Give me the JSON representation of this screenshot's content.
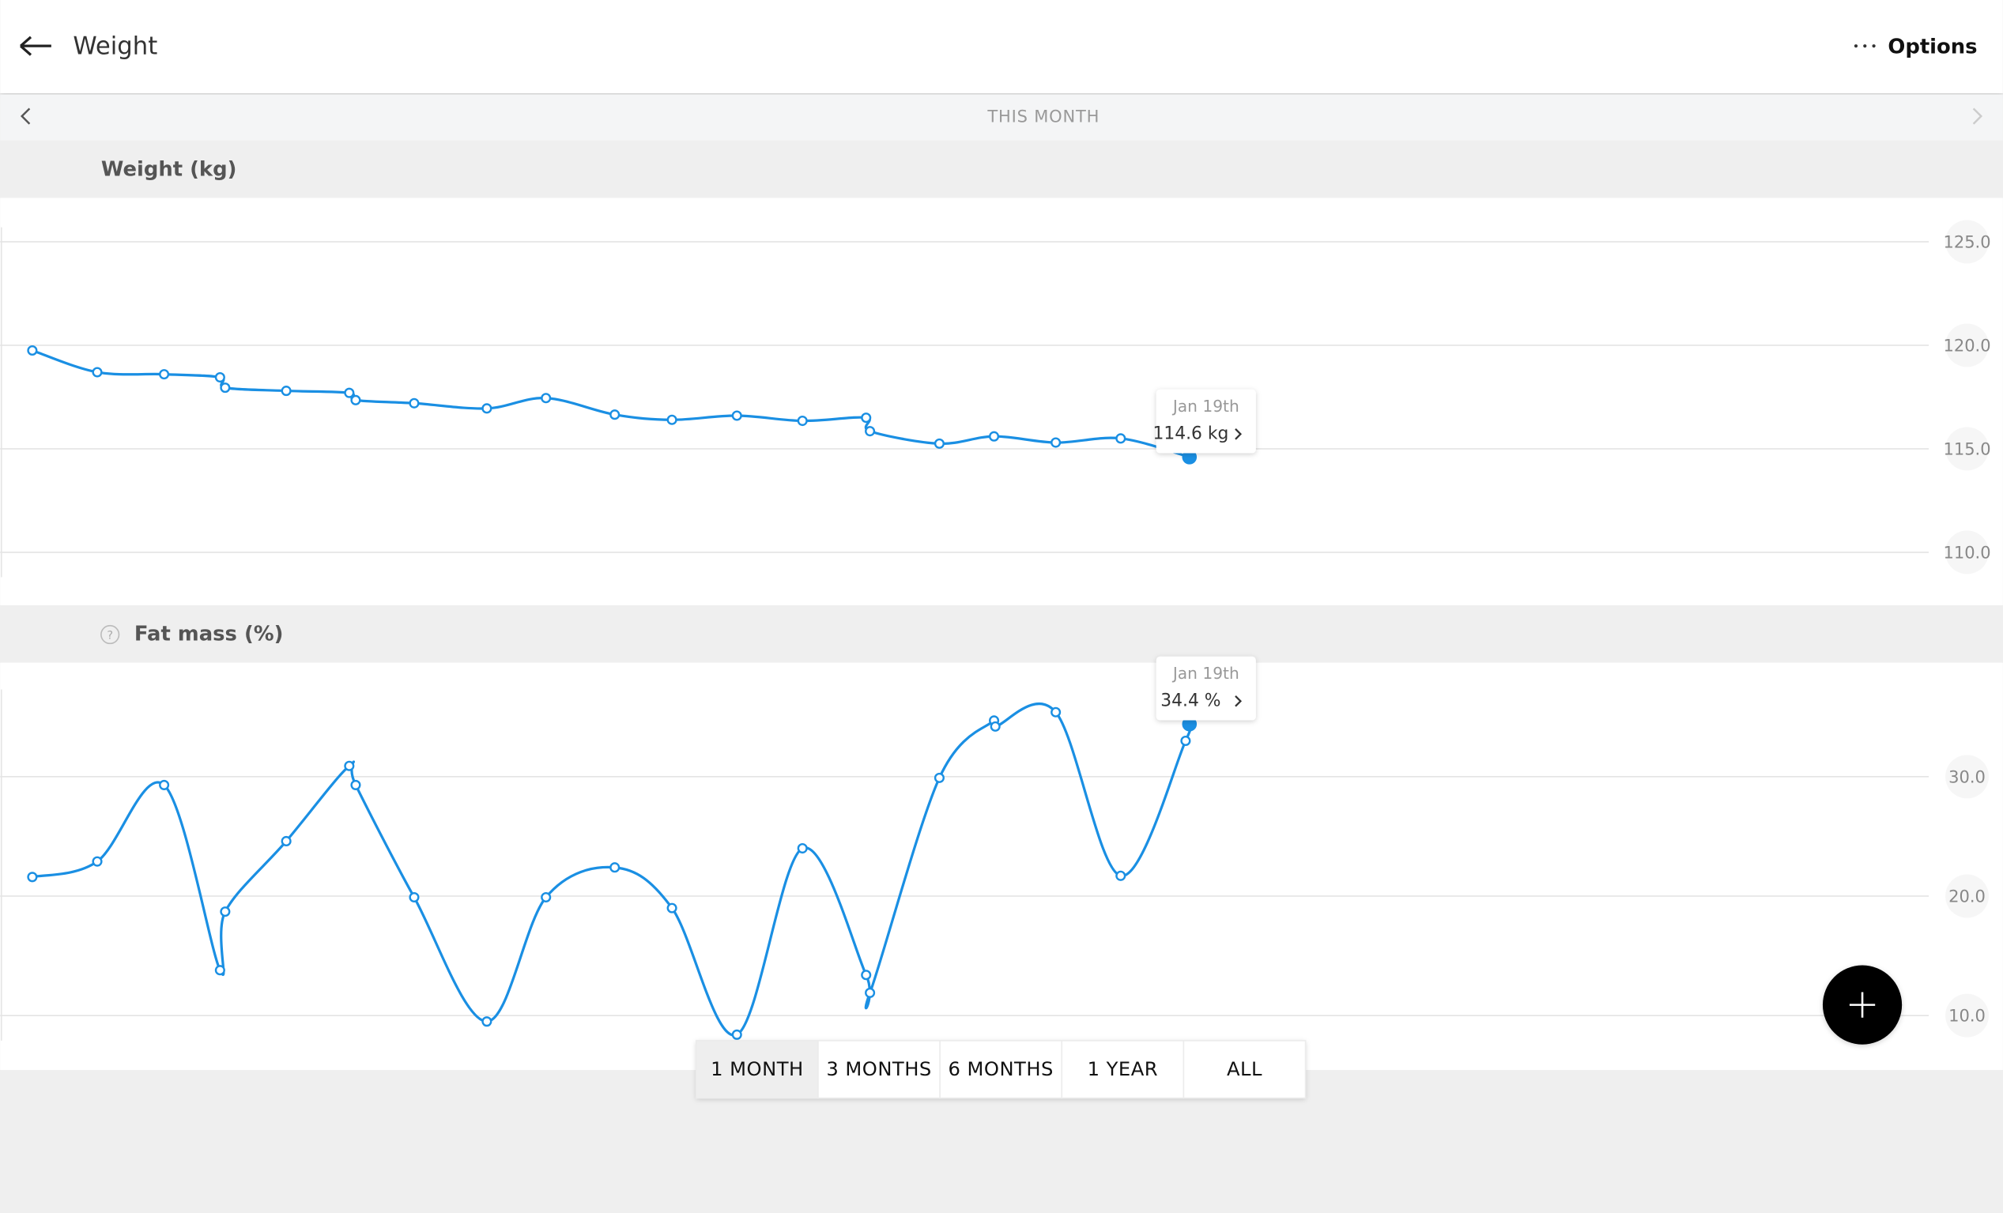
{
  "header": {
    "title": "Weight",
    "options": "Options"
  },
  "period": {
    "label": "THIS MONTH"
  },
  "range_buttons": [
    "1 MONTH",
    "3 MONTHS",
    "6 MONTHS",
    "1 YEAR",
    "ALL"
  ],
  "selected_range": 0,
  "chart_data": [
    {
      "type": "line",
      "title": "Weight (kg)",
      "color": "#1a8fe3",
      "grid": true,
      "x": [
        1.0,
        2.01,
        3.05,
        3.92,
        4.0,
        4.95,
        5.93,
        6.03,
        6.94,
        8.07,
        8.99,
        10.06,
        10.95,
        11.96,
        12.98,
        13.97,
        14.03,
        15.11,
        15.96,
        16.92,
        17.93,
        19.0
      ],
      "values": [
        119.75,
        118.7,
        118.6,
        118.45,
        117.95,
        117.8,
        117.7,
        117.35,
        117.2,
        116.95,
        117.45,
        116.65,
        116.4,
        116.6,
        116.35,
        116.5,
        115.85,
        115.25,
        115.6,
        115.3,
        115.5,
        114.6
      ],
      "xlim": [
        0.5,
        30.5
      ],
      "ylim": [
        108.8,
        125.7
      ],
      "yticks": [
        {
          "value": 110,
          "label": "110.0"
        },
        {
          "value": 115,
          "label": "115.0"
        },
        {
          "value": 120,
          "label": "120.0"
        },
        {
          "value": 125,
          "label": "125.0"
        }
      ],
      "tooltip": {
        "x_label": "Jan 19th",
        "value_label": "114.6 kg"
      }
    },
    {
      "type": "line",
      "title": "Fat mass (%)",
      "help_icon": "?",
      "color": "#1a8fe3",
      "grid": true,
      "x": [
        1.0,
        2.01,
        3.05,
        3.92,
        4.0,
        4.95,
        5.93,
        6.03,
        6.94,
        8.07,
        8.99,
        10.06,
        10.95,
        11.96,
        12.98,
        13.97,
        14.03,
        15.11,
        15.96,
        15.98,
        16.92,
        17.93,
        18.94,
        19.0
      ],
      "values": [
        21.6,
        22.9,
        29.3,
        13.8,
        18.7,
        24.6,
        30.9,
        29.3,
        19.9,
        9.5,
        19.9,
        22.4,
        19.0,
        8.4,
        24.0,
        13.4,
        11.9,
        29.9,
        34.7,
        34.2,
        35.4,
        21.7,
        33.0,
        34.4
      ],
      "xlim": [
        0.5,
        30.5
      ],
      "ylim": [
        7.9,
        37.3
      ],
      "yticks": [
        {
          "value": 10,
          "label": "10.0"
        },
        {
          "value": 20,
          "label": "20.0"
        },
        {
          "value": 30,
          "label": "30.0"
        }
      ],
      "tooltip": {
        "x_label": "Jan 19th",
        "value_label": "34.4 %"
      }
    }
  ]
}
